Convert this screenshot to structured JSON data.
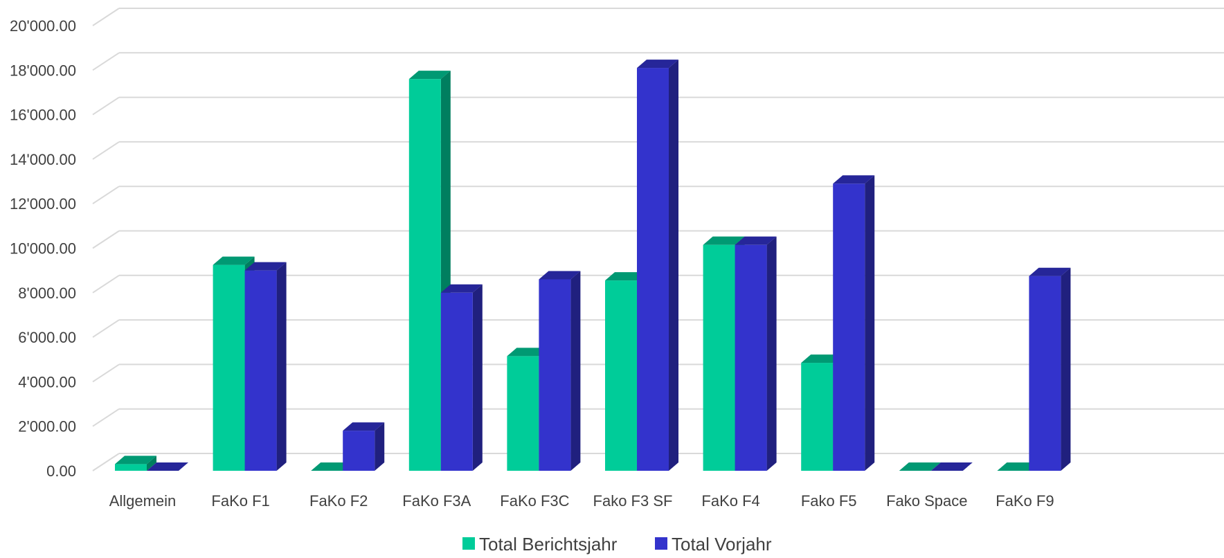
{
  "chart_data": {
    "type": "bar",
    "title": "",
    "xlabel": "",
    "ylabel": "",
    "ylim": [
      0,
      20000
    ],
    "y_ticks": [
      "0.00",
      "2'000.00",
      "4'000.00",
      "6'000.00",
      "8'000.00",
      "10'000.00",
      "12'000.00",
      "14'000.00",
      "16'000.00",
      "18'000.00",
      "20'000.00"
    ],
    "categories": [
      "Allgemein",
      "FaKo F1",
      "FaKo F2",
      "FaKo F3A",
      "FaKo F3C",
      "Fako F3 SF",
      "FaKo F4",
      "Fako F5",
      "Fako Space",
      "FaKo F9"
    ],
    "series": [
      {
        "name": "Total Berichtsjahr",
        "color": "#00CC99",
        "values": [
          300,
          9250,
          0,
          17600,
          5150,
          8550,
          10150,
          4850,
          0,
          0
        ]
      },
      {
        "name": "Total Vorjahr",
        "color": "#3333CC",
        "values": [
          0,
          9000,
          1800,
          8000,
          8600,
          18100,
          10150,
          12900,
          0,
          8750
        ]
      }
    ],
    "grid": true,
    "legend_position": "bottom",
    "style_3d": true
  }
}
